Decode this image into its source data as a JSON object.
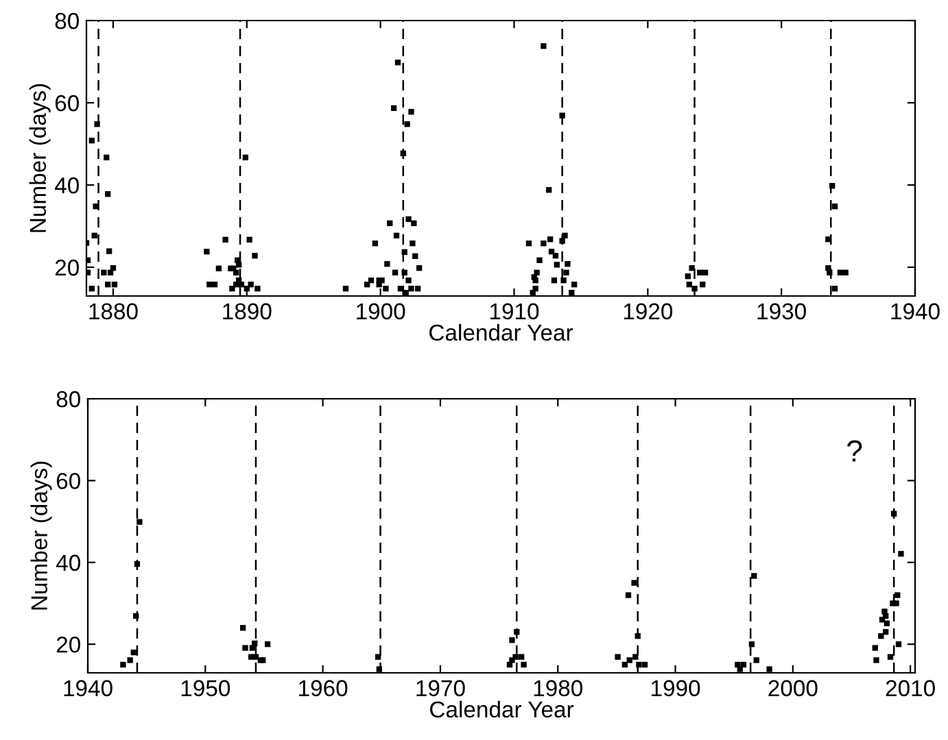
{
  "chart_data": [
    {
      "type": "scatter",
      "xlabel": "Calendar Year",
      "ylabel": "Number (days)",
      "xlim": [
        1878,
        1940
      ],
      "ylim": [
        13,
        80
      ],
      "xticks": [
        1880,
        1890,
        1900,
        1910,
        1920,
        1930,
        1940
      ],
      "yticks": [
        20,
        40,
        60,
        80
      ],
      "grid": false,
      "marker": "square",
      "series": [
        {
          "color": "#000000",
          "x": [
            1878.4,
            1878.0,
            1878.1,
            1878.1,
            1878.6,
            1878.4,
            1878.8,
            1878.7,
            1879.5,
            1879.6,
            1879.7,
            1879.3,
            1879.8,
            1880.0,
            1879.6,
            1880.1,
            1887.0,
            1887.2,
            1887.6,
            1887.9,
            1888.4,
            1888.8,
            1889.0,
            1889.2,
            1889.3,
            1889.4,
            1889.4,
            1888.9,
            1889.2,
            1889.6,
            1889.9,
            1890.2,
            1890.6,
            1890.0,
            1890.3,
            1890.8,
            1897.4,
            1899.0,
            1899.3,
            1899.6,
            1899.9,
            1900.1,
            1899.9,
            1900.4,
            1900.5,
            1900.7,
            1901.1,
            1901.2,
            1901.3,
            1901.0,
            1901.5,
            1901.7,
            1901.8,
            1901.8,
            1901.9,
            1902.0,
            1902.3,
            1902.1,
            1902.1,
            1902.4,
            1902.5,
            1902.6,
            1902.9,
            1902.3,
            1902.8,
            1912.2,
            1913.6,
            1912.6,
            1911.1,
            1912.2,
            1912.7,
            1913.6,
            1913.8,
            1912.8,
            1913.1,
            1911.9,
            1913.2,
            1914.0,
            1913.9,
            1911.7,
            1911.5,
            1911.6,
            1913.0,
            1913.7,
            1914.5,
            1911.6,
            1911.4,
            1914.3,
            1923.3,
            1923.0,
            1923.9,
            1924.3,
            1923.1,
            1923.5,
            1924.1,
            1933.8,
            1934.0,
            1933.5,
            1933.5,
            1933.6,
            1934.4,
            1934.8,
            1934.0
          ],
          "values": [
            14.8,
            25.9,
            21.7,
            18.7,
            27.7,
            50.8,
            54.8,
            34.8,
            46.7,
            37.8,
            23.9,
            18.7,
            18.7,
            19.8,
            15.8,
            15.8,
            23.8,
            15.8,
            15.8,
            19.7,
            26.7,
            19.7,
            19.7,
            18.7,
            21.7,
            20.6,
            16.8,
            14.8,
            15.8,
            15.8,
            46.7,
            26.7,
            22.8,
            14.8,
            15.8,
            14.8,
            14.8,
            15.8,
            16.8,
            25.8,
            16.8,
            16.8,
            15.8,
            14.8,
            20.8,
            30.7,
            18.7,
            27.7,
            69.8,
            58.7,
            14.8,
            47.7,
            23.7,
            18.7,
            13.8,
            54.8,
            57.8,
            31.7,
            16.8,
            25.8,
            30.7,
            22.7,
            19.8,
            14.8,
            14.8,
            73.8,
            56.9,
            38.8,
            25.8,
            25.8,
            26.8,
            26.4,
            27.7,
            23.8,
            22.8,
            21.7,
            20.6,
            20.8,
            18.7,
            18.7,
            17.6,
            16.8,
            16.8,
            16.8,
            15.8,
            14.8,
            13.8,
            13.8,
            19.8,
            17.8,
            18.7,
            18.7,
            15.8,
            14.8,
            15.8,
            39.8,
            34.8,
            26.8,
            19.8,
            18.7,
            18.7,
            18.7,
            14.8
          ]
        }
      ],
      "ref_lines": [
        {
          "axis": "x",
          "value": 1878.9,
          "line_style": "dashed",
          "color": "#000000"
        },
        {
          "axis": "x",
          "value": 1889.5,
          "line_style": "dashed",
          "color": "#000000"
        },
        {
          "axis": "x",
          "value": 1901.7,
          "line_style": "dashed",
          "color": "#000000"
        },
        {
          "axis": "x",
          "value": 1913.6,
          "line_style": "dashed",
          "color": "#000000"
        },
        {
          "axis": "x",
          "value": 1923.5,
          "line_style": "dashed",
          "color": "#000000"
        },
        {
          "axis": "x",
          "value": 1933.7,
          "line_style": "dashed",
          "color": "#000000"
        }
      ]
    },
    {
      "type": "scatter",
      "xlabel": "Calendar Year",
      "ylabel": "Number (days)",
      "xlim": [
        1940,
        2010.4
      ],
      "ylim": [
        13,
        80
      ],
      "xticks": [
        1940,
        1950,
        1960,
        1970,
        1980,
        1990,
        2000,
        2010
      ],
      "yticks": [
        20,
        40,
        60,
        80
      ],
      "grid": false,
      "marker": "square",
      "series": [
        {
          "color": "#000000",
          "x": [
            1944.4,
            1944.2,
            1944.1,
            1943.9,
            1943.6,
            1943.0,
            1953.2,
            1953.4,
            1954.0,
            1954.2,
            1955.3,
            1953.9,
            1954.3,
            1954.7,
            1954.9,
            1964.7,
            1964.8,
            1975.9,
            1976.1,
            1976.1,
            1976.5,
            1976.4,
            1976.9,
            1977.1,
            1986.5,
            1986.0,
            1986.8,
            1985.1,
            1985.7,
            1986.1,
            1986.6,
            1986.9,
            1987.4,
            1996.7,
            1996.5,
            1995.3,
            1995.8,
            1995.5,
            1996.9,
            1998.0,
            2008.6,
            2009.2,
            2008.9,
            2008.8,
            2008.5,
            2007.8,
            2007.9,
            2007.6,
            2008.0,
            2007.9,
            2007.5,
            2007.0,
            2007.1,
            2008.3,
            2009.0
          ],
          "values": [
            49.9,
            39.6,
            26.9,
            18.0,
            16.1,
            15.0,
            24.0,
            19.1,
            19.1,
            20.2,
            20.0,
            16.9,
            16.9,
            16.1,
            16.1,
            16.9,
            13.9,
            15.0,
            16.1,
            21.0,
            23.0,
            16.9,
            16.9,
            15.0,
            35.0,
            32.0,
            22.0,
            16.9,
            15.0,
            16.1,
            16.9,
            15.0,
            15.0,
            36.7,
            20.0,
            15.0,
            15.0,
            13.9,
            16.1,
            13.9,
            51.9,
            42.1,
            32.0,
            30.0,
            30.0,
            28.0,
            26.9,
            26.0,
            25.1,
            23.0,
            22.0,
            19.1,
            16.1,
            16.9,
            20.0
          ]
        }
      ],
      "ref_lines": [
        {
          "axis": "x",
          "value": 1944.2,
          "line_style": "dashed",
          "color": "#000000"
        },
        {
          "axis": "x",
          "value": 1954.3,
          "line_style": "dashed",
          "color": "#000000"
        },
        {
          "axis": "x",
          "value": 1964.9,
          "line_style": "dashed",
          "color": "#000000"
        },
        {
          "axis": "x",
          "value": 1976.5,
          "line_style": "dashed",
          "color": "#000000"
        },
        {
          "axis": "x",
          "value": 1986.8,
          "line_style": "dashed",
          "color": "#000000"
        },
        {
          "axis": "x",
          "value": 1996.4,
          "line_style": "dashed",
          "color": "#000000"
        },
        {
          "axis": "x",
          "value": 2008.6,
          "line_style": "dashed",
          "color": "#000000"
        }
      ],
      "annotations": [
        "?"
      ]
    }
  ]
}
